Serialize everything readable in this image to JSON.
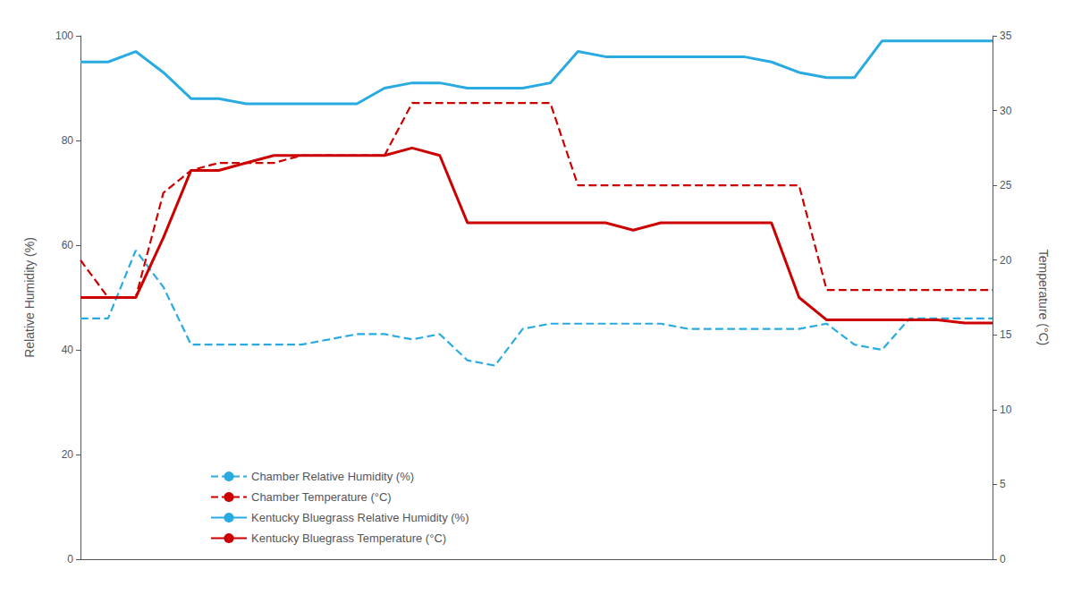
{
  "chart_data": {
    "type": "line",
    "ylabel": "Relative Humidity (%)",
    "y2label": "Temperature (°C)",
    "ylim": [
      0,
      100
    ],
    "yticks": [
      0,
      20,
      40,
      60,
      80,
      100
    ],
    "y2lim": [
      0,
      35
    ],
    "y2ticks": [
      0,
      5,
      10,
      15,
      20,
      25,
      30,
      35
    ],
    "grid": false,
    "legend": "lower left",
    "tick_labels": "y",
    "categories": [
      null,
      null,
      null,
      null,
      null,
      null,
      null,
      null,
      null,
      null,
      null,
      null,
      null,
      null,
      null,
      null,
      null,
      null,
      null,
      null,
      null,
      null,
      null,
      null,
      null,
      null,
      null,
      null,
      null,
      null,
      null,
      null,
      null,
      null
    ],
    "series": [
      {
        "name": "Chamber Relative Humidity (%)",
        "color": "#29ABE2",
        "line_style": "dashed",
        "values": [
          46,
          46,
          59,
          52,
          41,
          41,
          41,
          41,
          41,
          42,
          43,
          43,
          42,
          43,
          38,
          37,
          44,
          45,
          45,
          45,
          45,
          45,
          44,
          44,
          44,
          44,
          44,
          45,
          41,
          40,
          46,
          46,
          46,
          46
        ]
      },
      {
        "name": "Chamber Temperature (°C)",
        "color": "#CC0000",
        "line_style": "dashed",
        "axis": "y2",
        "values": [
          20.0,
          17.5,
          17.5,
          24.5,
          26.0,
          26.5,
          26.5,
          26.5,
          27.0,
          27.0,
          27.0,
          27.0,
          30.5,
          30.5,
          30.5,
          30.5,
          30.5,
          30.5,
          25.0,
          25.0,
          25.0,
          25.0,
          25.0,
          25.0,
          25.0,
          25.0,
          25.0,
          18.0,
          18.0,
          18.0,
          18.0,
          18.0,
          18.0,
          18.0
        ]
      },
      {
        "name": "Kentucky Bluegrass Relative Humidity (%)",
        "color": "#29ABE2",
        "line_style": "solid",
        "values": [
          95,
          95,
          97,
          93,
          88,
          88,
          87,
          87,
          87,
          87,
          87,
          90,
          91,
          91,
          90,
          90,
          90,
          91,
          97,
          96,
          96,
          96,
          96,
          96,
          96,
          95,
          93,
          92,
          92,
          99,
          99,
          99,
          99,
          99
        ]
      },
      {
        "name": "Kentucky Bluegrass Temperature (°C)",
        "color": "#CC0000",
        "line_style": "solid",
        "axis": "y2",
        "values": [
          17.5,
          17.5,
          17.5,
          21.5,
          26.0,
          26.0,
          26.5,
          27.0,
          27.0,
          27.0,
          27.0,
          27.0,
          27.5,
          27.0,
          22.5,
          22.5,
          22.5,
          22.5,
          22.5,
          22.5,
          22.0,
          22.5,
          22.5,
          22.5,
          22.5,
          22.5,
          17.5,
          16.0,
          16.0,
          16.0,
          16.0,
          16.0,
          15.8,
          15.8
        ]
      }
    ]
  }
}
